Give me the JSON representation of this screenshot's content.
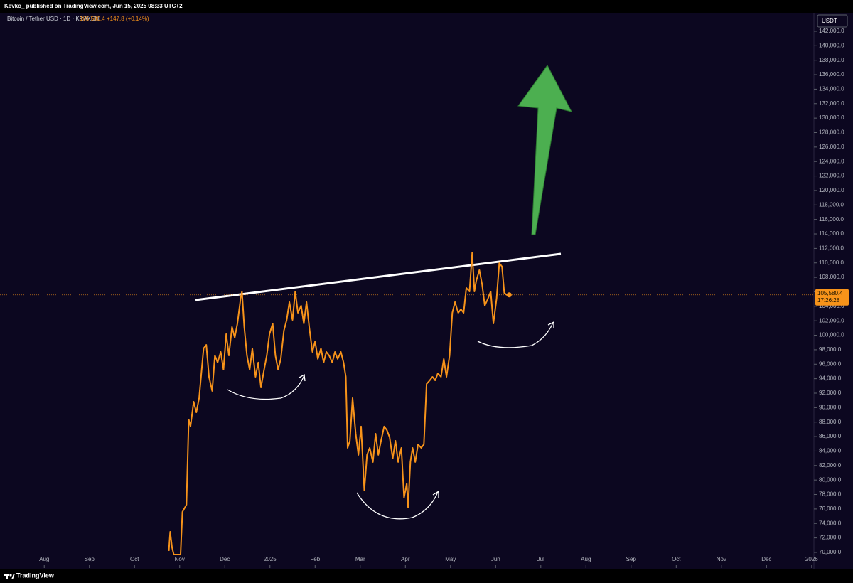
{
  "header": {
    "published": "Kevko_ published on TradingView.com, Jun 15, 2025 08:33 UTC+2"
  },
  "symbol": {
    "name": "Bitcoin / Tether USD · 1D · KRAKEN",
    "change": "+147.8 (+0.14%)"
  },
  "chart_data": {
    "type": "line",
    "color": "#f7931a",
    "x": [
      2.76,
      2.79,
      2.83,
      2.87,
      3.02,
      3.06,
      3.15,
      3.2,
      3.24,
      3.31,
      3.37,
      3.43,
      3.53,
      3.59,
      3.65,
      3.72,
      3.78,
      3.84,
      3.91,
      3.97,
      4.03,
      4.09,
      4.16,
      4.22,
      4.28,
      4.35,
      4.38,
      4.43,
      4.49,
      4.55,
      4.61,
      4.68,
      4.74,
      4.8,
      4.87,
      4.93,
      4.99,
      5.06,
      5.12,
      5.18,
      5.24,
      5.31,
      5.37,
      5.43,
      5.5,
      5.56,
      5.62,
      5.69,
      5.75,
      5.81,
      5.87,
      5.94,
      6.0,
      6.06,
      6.13,
      6.19,
      6.25,
      6.31,
      6.38,
      6.44,
      6.5,
      6.57,
      6.63,
      6.68,
      6.72,
      6.77,
      6.83,
      6.9,
      6.96,
      7.02,
      7.09,
      7.15,
      7.21,
      7.28,
      7.34,
      7.4,
      7.46,
      7.53,
      7.59,
      7.65,
      7.72,
      7.78,
      7.84,
      7.91,
      7.97,
      8.03,
      8.06,
      8.11,
      8.16,
      8.22,
      8.28,
      8.35,
      8.41,
      8.47,
      8.54,
      8.6,
      8.66,
      8.72,
      8.79,
      8.85,
      8.91,
      8.98,
      9.04,
      9.1,
      9.17,
      9.23,
      9.29,
      9.35,
      9.42,
      9.48,
      9.53,
      9.57,
      9.64,
      9.7,
      9.76,
      9.83,
      9.89,
      9.95,
      10.02,
      10.08,
      10.14,
      10.19,
      10.25,
      10.3
    ],
    "values": [
      70200,
      72850,
      70690,
      69700,
      69700,
      75600,
      76580,
      88370,
      87390,
      90820,
      89350,
      91320,
      98190,
      98680,
      94260,
      92300,
      97210,
      96230,
      97700,
      95250,
      100160,
      97210,
      101140,
      99670,
      101630,
      105070,
      106050,
      101140,
      97210,
      95250,
      98190,
      94260,
      96230,
      92790,
      95250,
      97210,
      100160,
      101630,
      97210,
      95250,
      96720,
      100650,
      102120,
      104580,
      102120,
      106050,
      103100,
      104090,
      101630,
      104580,
      101140,
      97700,
      99170,
      96720,
      98190,
      96230,
      97700,
      97210,
      96230,
      97700,
      96720,
      97700,
      96230,
      94260,
      84440,
      85420,
      91320,
      86400,
      83460,
      87390,
      78550,
      83460,
      84440,
      82480,
      86400,
      83460,
      85420,
      87390,
      86900,
      85910,
      82970,
      85420,
      82480,
      84440,
      77560,
      79530,
      76190,
      82480,
      84440,
      82480,
      84930,
      84440,
      84930,
      93280,
      93770,
      94260,
      93770,
      94750,
      94260,
      96720,
      94260,
      97210,
      103100,
      104580,
      103100,
      103590,
      103100,
      106540,
      106050,
      111450,
      106050,
      107520,
      109000,
      107030,
      104090,
      105070,
      106050,
      101630,
      105070,
      109980,
      109490,
      105850,
      105560,
      105580.4
    ],
    "price_label": "105,580.4",
    "countdown": "17:26:28",
    "currency": "USDT",
    "grid": false,
    "xlim": [
      -0.98,
      17.05
    ],
    "xticks": [
      {
        "value": 0,
        "label": "Aug"
      },
      {
        "value": 1,
        "label": "Sep"
      },
      {
        "value": 2,
        "label": "Oct"
      },
      {
        "value": 3,
        "label": "Nov"
      },
      {
        "value": 4,
        "label": "Dec"
      },
      {
        "value": 5,
        "label": "2025"
      },
      {
        "value": 6,
        "label": "Feb"
      },
      {
        "value": 7,
        "label": "Mar"
      },
      {
        "value": 8,
        "label": "Apr"
      },
      {
        "value": 9,
        "label": "May"
      },
      {
        "value": 10,
        "label": "Jun"
      },
      {
        "value": 11,
        "label": "Jul"
      },
      {
        "value": 12,
        "label": "Aug"
      },
      {
        "value": 13,
        "label": "Sep"
      },
      {
        "value": 14,
        "label": "Oct"
      },
      {
        "value": 15,
        "label": "Nov"
      },
      {
        "value": 16,
        "label": "Dec"
      },
      {
        "value": 17,
        "label": "2026"
      }
    ],
    "ylim": [
      68230,
      144550
    ],
    "yticks": [
      {
        "value": 70000,
        "label": "70,000.0"
      },
      {
        "value": 72000,
        "label": "72,000.0"
      },
      {
        "value": 74000,
        "label": "74,000.0"
      },
      {
        "value": 76000,
        "label": "76,000.0"
      },
      {
        "value": 78000,
        "label": "78,000.0"
      },
      {
        "value": 80000,
        "label": "80,000.0"
      },
      {
        "value": 82000,
        "label": "82,000.0"
      },
      {
        "value": 84000,
        "label": "84,000.0"
      },
      {
        "value": 86000,
        "label": "86,000.0"
      },
      {
        "value": 88000,
        "label": "88,000.0"
      },
      {
        "value": 90000,
        "label": "90,000.0"
      },
      {
        "value": 92000,
        "label": "92,000.0"
      },
      {
        "value": 94000,
        "label": "94,000.0"
      },
      {
        "value": 96000,
        "label": "96,000.0"
      },
      {
        "value": 98000,
        "label": "98,000.0"
      },
      {
        "value": 100000,
        "label": "100,000.0"
      },
      {
        "value": 102000,
        "label": "102,000.0"
      },
      {
        "value": 104000,
        "label": "104,000.0"
      },
      {
        "value": 106000,
        "label": "106,000.0"
      },
      {
        "value": 108000,
        "label": "108,000.0"
      },
      {
        "value": 110000,
        "label": "110,000.0"
      },
      {
        "value": 112000,
        "label": "112,000.0"
      },
      {
        "value": 114000,
        "label": "114,000.0"
      },
      {
        "value": 116000,
        "label": "116,000.0"
      },
      {
        "value": 118000,
        "label": "118,000.0"
      },
      {
        "value": 120000,
        "label": "120,000.0"
      },
      {
        "value": 122000,
        "label": "122,000.0"
      },
      {
        "value": 124000,
        "label": "124,000.0"
      },
      {
        "value": 126000,
        "label": "126,000.0"
      },
      {
        "value": 128000,
        "label": "128,000.0"
      },
      {
        "value": 130000,
        "label": "130,000.0"
      },
      {
        "value": 132000,
        "label": "132,000.0"
      },
      {
        "value": 134000,
        "label": "134,000.0"
      },
      {
        "value": 136000,
        "label": "136,000.0"
      },
      {
        "value": 138000,
        "label": "138,000.0"
      },
      {
        "value": 140000,
        "label": "140,000.0"
      },
      {
        "value": 142000,
        "label": "142,000.0"
      }
    ]
  },
  "footer": {
    "brand": "TradingView"
  }
}
